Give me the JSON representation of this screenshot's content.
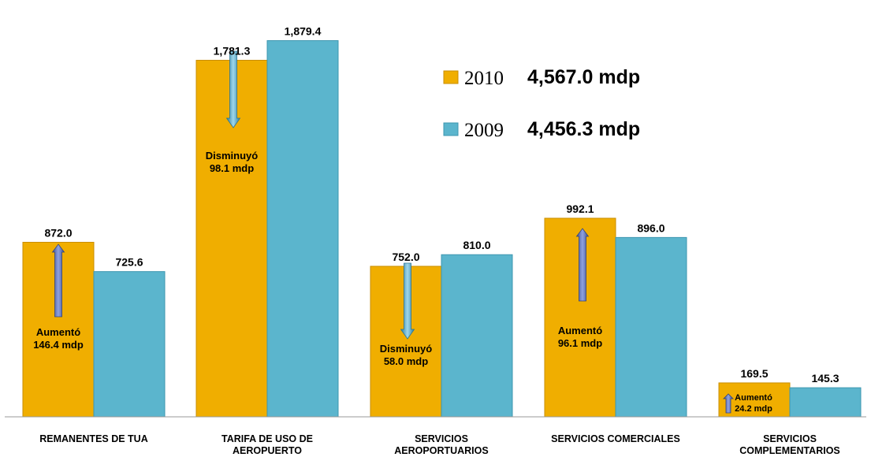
{
  "chart_data": {
    "type": "bar",
    "categories": [
      [
        "REMANENTES DE TUA"
      ],
      [
        "TARIFA DE USO DE",
        "AEROPUERTO"
      ],
      [
        "SERVICIOS",
        "AEROPORTUARIOS"
      ],
      [
        "SERVICIOS COMERCIALES"
      ],
      [
        "SERVICIOS",
        "COMPLEMENTARIOS"
      ]
    ],
    "series": [
      {
        "name": "2010",
        "color": "#F0AE00",
        "stroke": "#C98E00",
        "values": [
          872.0,
          1781.3,
          752.0,
          992.1,
          169.5
        ],
        "labels": [
          "872.0",
          "1,781.3",
          "752.0",
          "992.1",
          "169.5"
        ]
      },
      {
        "name": "2009",
        "color": "#5BB5CD",
        "stroke": "#3E97B0",
        "values": [
          725.6,
          1879.4,
          810.0,
          896.0,
          145.3
        ],
        "labels": [
          "725.6",
          "1,879.4",
          "810.0",
          "896.0",
          "145.3"
        ]
      }
    ],
    "legend": [
      {
        "year": "2010",
        "total": "4,567.0 mdp"
      },
      {
        "year": "2009",
        "total": "4,456.3 mdp"
      }
    ],
    "legend_position": "top-right",
    "ylim": [
      0,
      1980
    ],
    "grid": false,
    "annotations": [
      {
        "category": 0,
        "direction": "up",
        "lines": [
          "Aumentó",
          "146.4 mdp"
        ]
      },
      {
        "category": 1,
        "direction": "down",
        "lines": [
          "Disminuyó",
          "98.1 mdp"
        ]
      },
      {
        "category": 2,
        "direction": "down",
        "lines": [
          "Disminuyó",
          "58.0 mdp"
        ]
      },
      {
        "category": 3,
        "direction": "up",
        "lines": [
          "Aumentó",
          "96.1 mdp"
        ]
      },
      {
        "category": 4,
        "direction": "up",
        "lines": [
          "Aumentó",
          "24.2 mdp"
        ]
      }
    ],
    "arrow_colors": {
      "up": "#5C72B8",
      "down": "#4DA8C8"
    }
  }
}
